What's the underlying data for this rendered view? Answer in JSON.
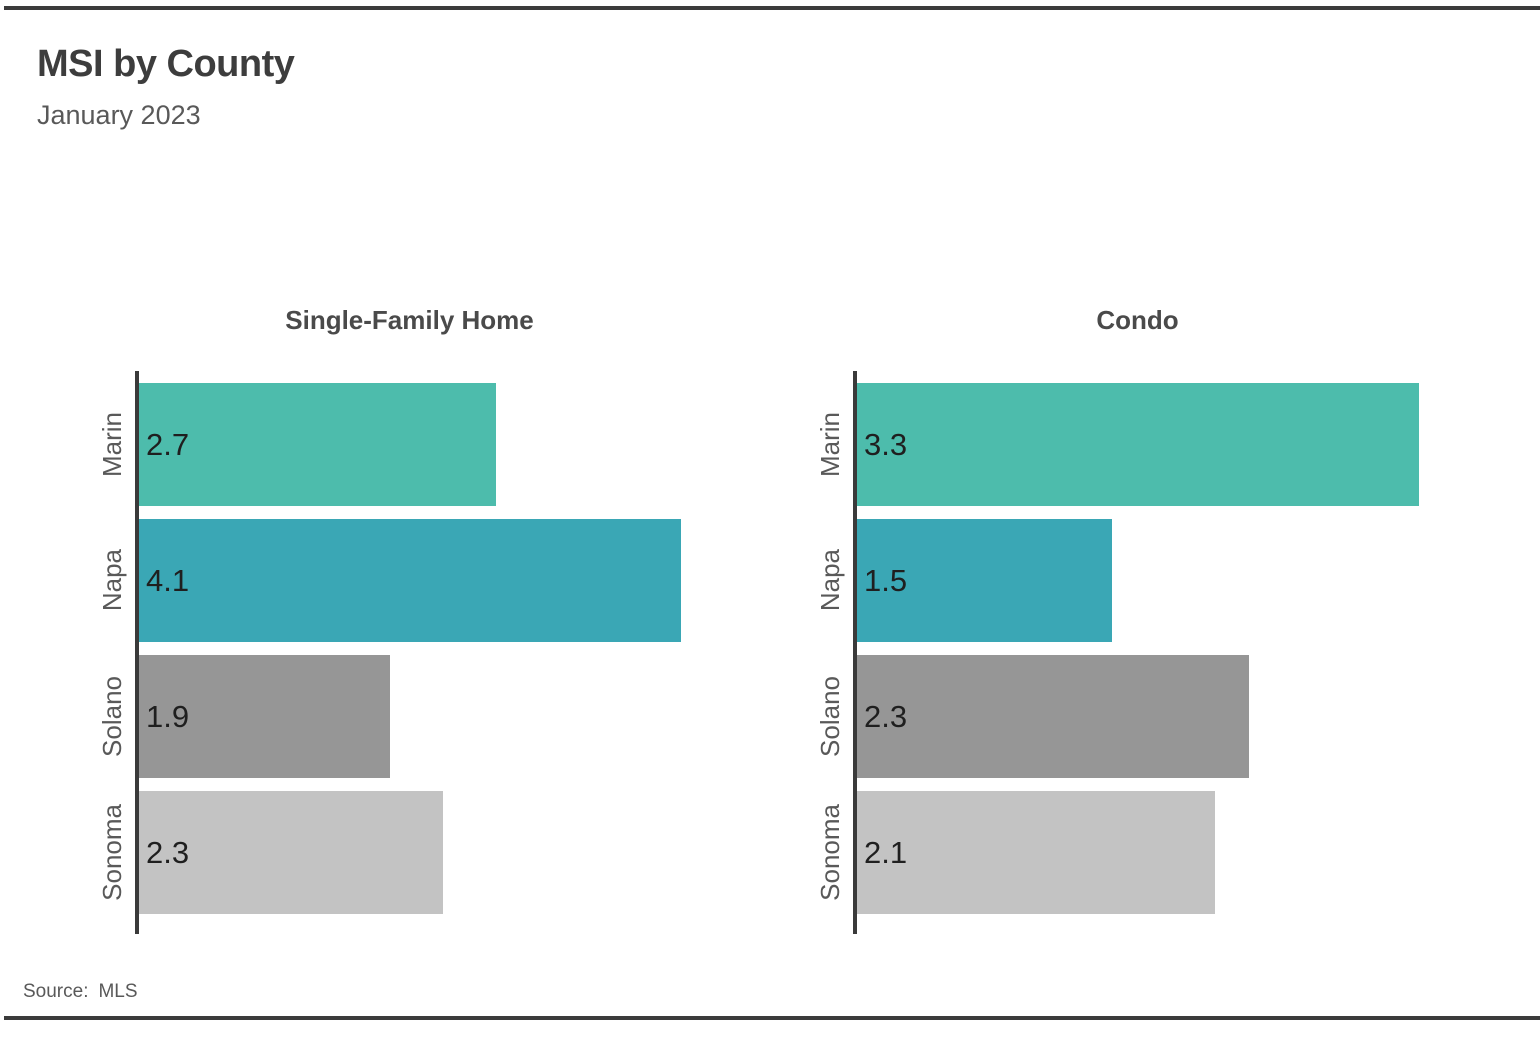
{
  "page": {
    "title": "MSI by County",
    "subtitle": "January 2023",
    "source": {
      "prefix": "Source:",
      "value": "MLS"
    }
  },
  "colors": {
    "marin": "#4DBCAC",
    "napa": "#3AA7B5",
    "solano": "#969696",
    "sonoma": "#C3C3C3",
    "axis": "#3A3A3A",
    "rule": "#3B3B3B",
    "title_text": "#3D3D3D",
    "label_text": "#595959",
    "value_text": "#1F1F1F"
  },
  "chart_data": [
    {
      "type": "bar",
      "orientation": "horizontal",
      "title": "Single-Family Home",
      "categories": [
        "Marin",
        "Napa",
        "Solano",
        "Sonoma"
      ],
      "values": [
        2.7,
        4.1,
        1.9,
        2.3
      ],
      "value_labels": [
        "2.7",
        "4.1",
        "1.9",
        "2.3"
      ],
      "colors": [
        "#4DBCAC",
        "#3AA7B5",
        "#969696",
        "#C3C3C3"
      ],
      "xlim": [
        0,
        4.1
      ],
      "grid": false,
      "legend": "none",
      "value_label_position": "inside-left"
    },
    {
      "type": "bar",
      "orientation": "horizontal",
      "title": "Condo",
      "categories": [
        "Marin",
        "Napa",
        "Solano",
        "Sonoma"
      ],
      "values": [
        3.3,
        1.5,
        2.3,
        2.1
      ],
      "value_labels": [
        "3.3",
        "1.5",
        "2.3",
        "2.1"
      ],
      "colors": [
        "#4DBCAC",
        "#3AA7B5",
        "#969696",
        "#C3C3C3"
      ],
      "xlim": [
        0,
        3.3
      ],
      "grid": false,
      "legend": "none",
      "value_label_position": "inside-left"
    }
  ]
}
